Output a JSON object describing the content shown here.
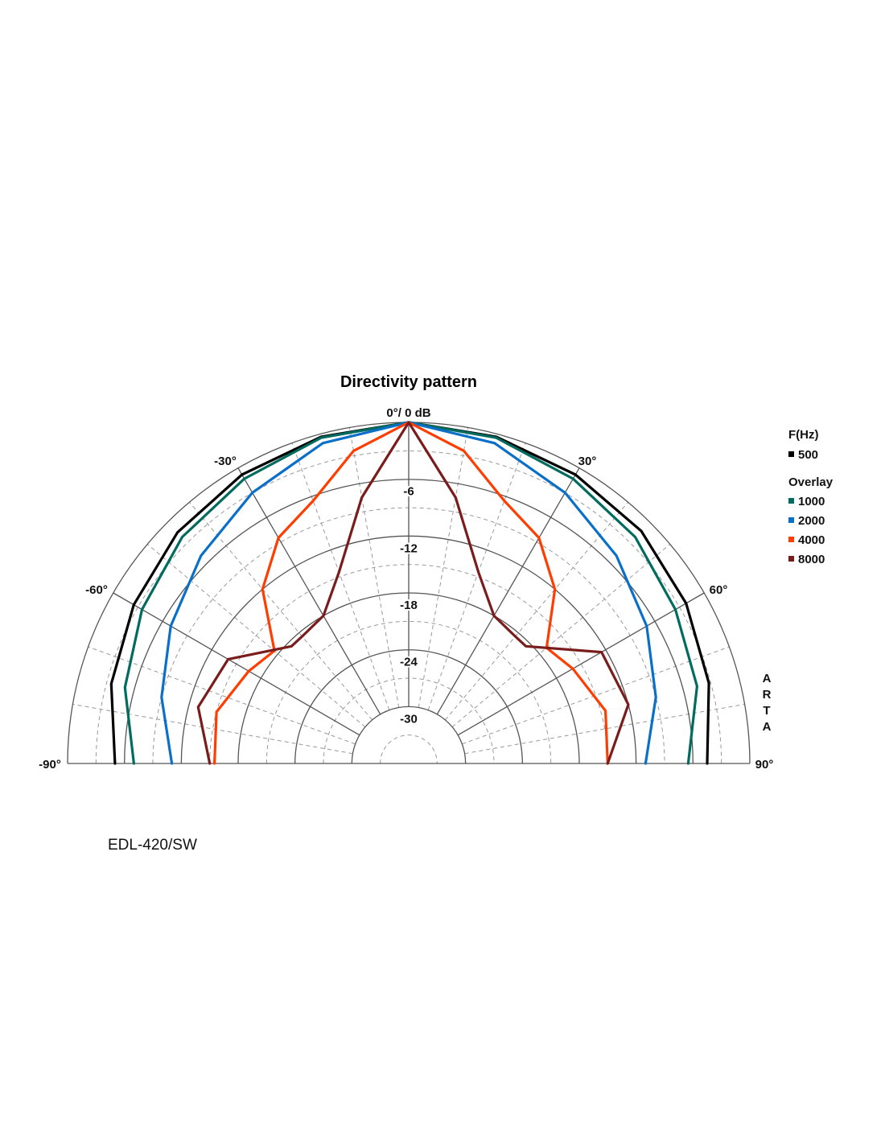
{
  "chart_data": {
    "type": "polar",
    "title": "Directivity pattern",
    "top_label": "0°/ 0 dB",
    "angle_labels": [
      {
        "angle": -90,
        "text": "-90°"
      },
      {
        "angle": -60,
        "text": "-60°"
      },
      {
        "angle": -30,
        "text": "-30°"
      },
      {
        "angle": 30,
        "text": "30°"
      },
      {
        "angle": 60,
        "text": "60°"
      },
      {
        "angle": 90,
        "text": "90°"
      }
    ],
    "db_range": [
      -36,
      0
    ],
    "radial_ticks": [
      {
        "db": -6,
        "text": "-6"
      },
      {
        "db": -12,
        "text": "-12"
      },
      {
        "db": -18,
        "text": "-18"
      },
      {
        "db": -24,
        "text": "-24"
      },
      {
        "db": -30,
        "text": "-30"
      }
    ],
    "legend": {
      "freq_header": "F(Hz)",
      "overlay_header": "Overlay"
    },
    "series": [
      {
        "name": "500",
        "color": "#000000",
        "group": "main",
        "points": [
          [
            -90,
            -5.0
          ],
          [
            -75,
            -3.5
          ],
          [
            -60,
            -2.5
          ],
          [
            -45,
            -1.5
          ],
          [
            -30,
            -0.8
          ],
          [
            -15,
            -0.3
          ],
          [
            0,
            0
          ],
          [
            15,
            -0.3
          ],
          [
            30,
            -0.8
          ],
          [
            45,
            -1.3
          ],
          [
            60,
            -2.2
          ],
          [
            75,
            -3.2
          ],
          [
            90,
            -4.5
          ]
        ]
      },
      {
        "name": "1000",
        "color": "#006b5e",
        "group": "overlay",
        "points": [
          [
            -90,
            -7.0
          ],
          [
            -75,
            -5.0
          ],
          [
            -60,
            -3.5
          ],
          [
            -45,
            -2.2
          ],
          [
            -30,
            -1.3
          ],
          [
            -15,
            -0.4
          ],
          [
            0,
            0
          ],
          [
            15,
            -0.4
          ],
          [
            30,
            -1.3
          ],
          [
            45,
            -2.2
          ],
          [
            60,
            -3.5
          ],
          [
            75,
            -4.5
          ],
          [
            90,
            -6.5
          ]
        ]
      },
      {
        "name": "2000",
        "color": "#0a6fc9",
        "group": "overlay",
        "points": [
          [
            -90,
            -11.0
          ],
          [
            -75,
            -9.0
          ],
          [
            -60,
            -7.0
          ],
          [
            -45,
            -5.0
          ],
          [
            -30,
            -3.0
          ],
          [
            -15,
            -1.0
          ],
          [
            0,
            0
          ],
          [
            15,
            -1.0
          ],
          [
            30,
            -3.0
          ],
          [
            45,
            -5.0
          ],
          [
            60,
            -7.0
          ],
          [
            75,
            -9.0
          ],
          [
            90,
            -11.0
          ]
        ]
      },
      {
        "name": "4000",
        "color": "#ff3d00",
        "group": "overlay",
        "points": [
          [
            -90,
            -15.5
          ],
          [
            -75,
            -15.0
          ],
          [
            -60,
            -16.5
          ],
          [
            -50,
            -17.5
          ],
          [
            -40,
            -12.0
          ],
          [
            -30,
            -8.5
          ],
          [
            -20,
            -6.5
          ],
          [
            -10,
            -2.5
          ],
          [
            0,
            0
          ],
          [
            10,
            -2.5
          ],
          [
            20,
            -6.5
          ],
          [
            30,
            -8.5
          ],
          [
            40,
            -12.0
          ],
          [
            50,
            -17.0
          ],
          [
            60,
            -16.0
          ],
          [
            75,
            -14.5
          ],
          [
            90,
            -15.0
          ]
        ]
      },
      {
        "name": "8000",
        "color": "#7a1c1c",
        "group": "overlay",
        "points": [
          [
            -90,
            -15.0
          ],
          [
            -75,
            -13.0
          ],
          [
            -60,
            -14.0
          ],
          [
            -45,
            -18.5
          ],
          [
            -40,
            -18.5
          ],
          [
            -30,
            -18.0
          ],
          [
            -20,
            -14.5
          ],
          [
            -10,
            -7.5
          ],
          [
            0,
            0
          ],
          [
            10,
            -7.5
          ],
          [
            20,
            -14.5
          ],
          [
            30,
            -18.0
          ],
          [
            40,
            -18.5
          ],
          [
            45,
            -18.5
          ],
          [
            60,
            -12.5
          ],
          [
            75,
            -12.0
          ],
          [
            90,
            -15.0
          ]
        ]
      }
    ]
  },
  "watermark": "ARTA",
  "footer": {
    "model": "EDL-420/SW"
  }
}
